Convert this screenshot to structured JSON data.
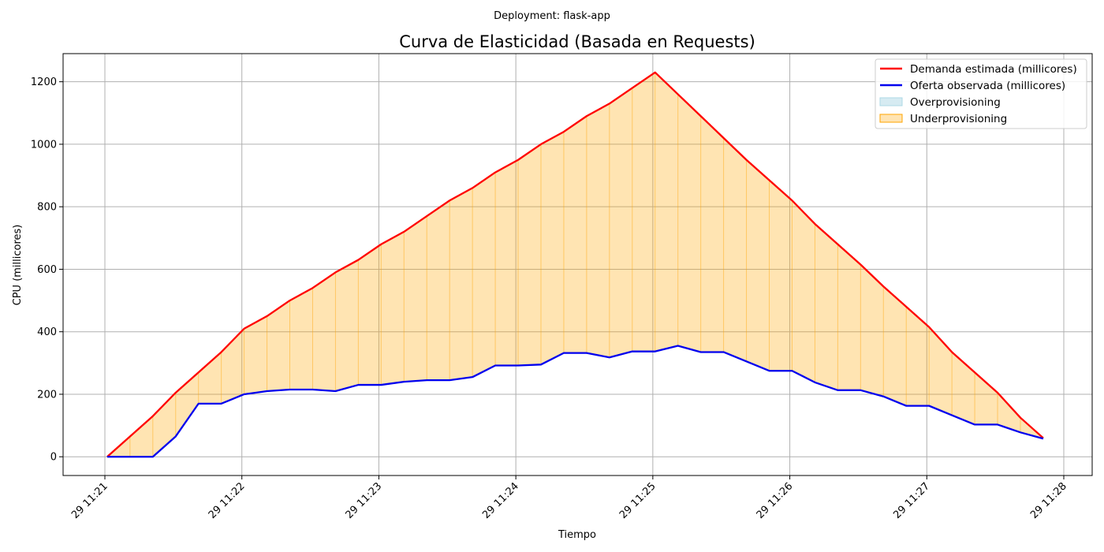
{
  "chart_data": {
    "type": "area",
    "suptitle": "Deployment: flask-app",
    "title": "Curva de Elasticidad (Basada en Requests)",
    "xlabel": "Tiempo",
    "ylabel": "CPU (millicores)",
    "grid": true,
    "legend_position": "top-right",
    "x_tick_labels": [
      "29 11:21",
      "29 11:22",
      "29 11:23",
      "29 11:24",
      "29 11:25",
      "29 11:26",
      "29 11:27",
      "29 11:28"
    ],
    "y_ticks": [
      0,
      200,
      400,
      600,
      800,
      1000,
      1200
    ],
    "ylim": [
      -60,
      1290
    ],
    "x_start": "11:21:00",
    "x_end": "11:28:00",
    "x": [
      "11:21:01",
      "11:21:11",
      "11:21:21",
      "11:21:31",
      "11:21:41",
      "11:21:51",
      "11:22:01",
      "11:22:11",
      "11:22:21",
      "11:22:31",
      "11:22:41",
      "11:22:51",
      "11:23:01",
      "11:23:11",
      "11:23:21",
      "11:23:31",
      "11:23:41",
      "11:23:51",
      "11:24:01",
      "11:24:11",
      "11:24:21",
      "11:24:31",
      "11:24:41",
      "11:24:51",
      "11:25:01",
      "11:25:11",
      "11:25:21",
      "11:25:31",
      "11:25:41",
      "11:25:51",
      "11:26:01",
      "11:26:11",
      "11:26:21",
      "11:26:31",
      "11:26:41",
      "11:26:51",
      "11:27:01",
      "11:27:11",
      "11:27:21",
      "11:27:31",
      "11:27:41",
      "11:27:51"
    ],
    "series": [
      {
        "name": "Demanda estimada (millicores)",
        "color": "#ff0000",
        "values": [
          0,
          65,
          130,
          205,
          270,
          335,
          410,
          450,
          500,
          540,
          590,
          630,
          680,
          720,
          770,
          820,
          860,
          910,
          950,
          1000,
          1040,
          1090,
          1130,
          1180,
          1230,
          1160,
          1090,
          1020,
          950,
          885,
          820,
          745,
          680,
          615,
          545,
          480,
          415,
          335,
          270,
          205,
          125,
          60
        ]
      },
      {
        "name": "Oferta observada (millicores)",
        "color": "#0000ee",
        "values": [
          0,
          0,
          0,
          65,
          170,
          170,
          200,
          210,
          215,
          215,
          210,
          230,
          230,
          240,
          245,
          245,
          255,
          292,
          292,
          295,
          332,
          332,
          318,
          337,
          337,
          355,
          335,
          335,
          305,
          275,
          275,
          238,
          213,
          213,
          193,
          163,
          163,
          133,
          103,
          103,
          78,
          58
        ]
      }
    ],
    "fills": [
      {
        "name": "Overprovisioning",
        "color": "#add8e6"
      },
      {
        "name": "Underprovisioning",
        "color": "#ffa500"
      }
    ]
  }
}
